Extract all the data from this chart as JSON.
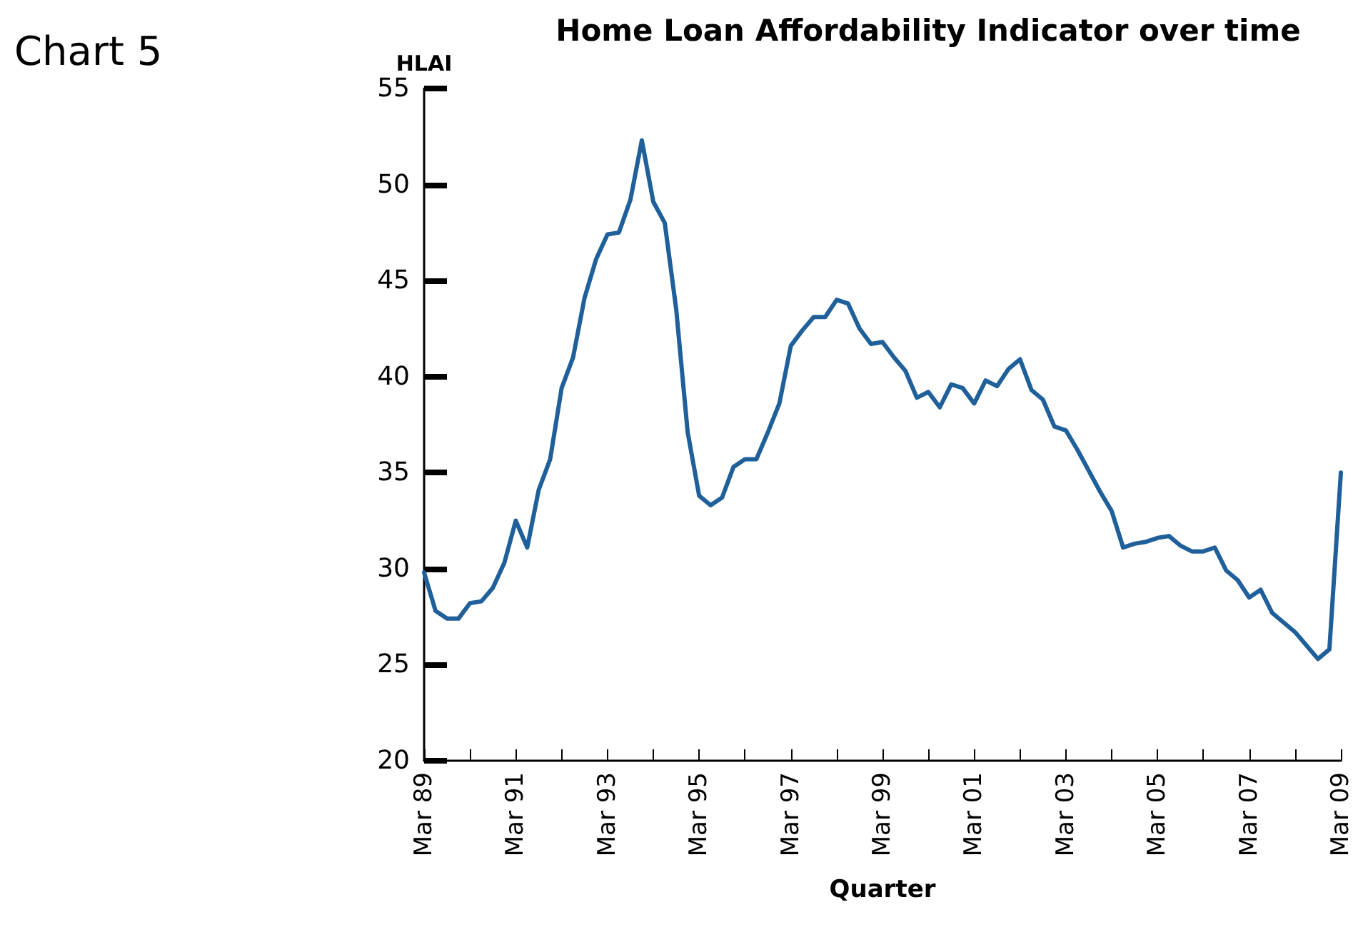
{
  "chart_data": {
    "type": "line",
    "title": "Home Loan Affordability Indicator over time",
    "ylabel": "HLAI",
    "xlabel": "Quarter",
    "annotations": [
      "Chart 5"
    ],
    "categories": [
      "Mar 89",
      null,
      null,
      null,
      null,
      null,
      null,
      null,
      "Mar 91",
      null,
      null,
      null,
      null,
      null,
      null,
      null,
      "Mar 93",
      null,
      null,
      null,
      null,
      null,
      null,
      null,
      "Mar 95",
      null,
      null,
      null,
      null,
      null,
      null,
      null,
      "Mar 97",
      null,
      null,
      null,
      null,
      null,
      null,
      null,
      "Mar 99",
      null,
      null,
      null,
      null,
      null,
      null,
      null,
      "Mar 01",
      null,
      null,
      null,
      null,
      null,
      null,
      null,
      "Mar 03",
      null,
      null,
      null,
      null,
      null,
      null,
      null,
      "Mar 05",
      null,
      null,
      null,
      null,
      null,
      null,
      null,
      "Mar 07",
      null,
      null,
      null,
      null,
      null,
      null,
      null,
      "Mar 09"
    ],
    "series": [
      {
        "color": "#1f5f9a",
        "values": [
          29.8,
          27.8,
          27.4,
          27.4,
          28.2,
          28.3,
          29.0,
          30.3,
          32.5,
          31.1,
          34.1,
          35.7,
          39.4,
          41.0,
          44.1,
          46.1,
          47.4,
          47.5,
          49.2,
          52.3,
          49.1,
          48.0,
          43.5,
          37.1,
          33.8,
          33.3,
          33.7,
          35.3,
          35.7,
          35.7,
          37.1,
          38.6,
          41.6,
          42.4,
          43.1,
          43.1,
          44.0,
          43.8,
          42.5,
          41.7,
          41.8,
          41.0,
          40.3,
          38.9,
          39.2,
          38.4,
          39.6,
          39.4,
          38.6,
          39.8,
          39.5,
          40.4,
          40.9,
          39.3,
          38.8,
          37.4,
          37.2,
          36.2,
          35.1,
          34.0,
          33.0,
          31.1,
          31.3,
          31.4,
          31.6,
          31.7,
          31.2,
          30.9,
          30.9,
          31.1,
          29.9,
          29.4,
          28.5,
          28.9,
          27.7,
          27.2,
          26.7,
          26.0,
          25.3,
          25.8,
          35.0
        ]
      }
    ],
    "ylim": [
      20,
      55
    ],
    "yticks": [
      20,
      25,
      30,
      35,
      40,
      45,
      50,
      55
    ],
    "grid": false,
    "marker": "none",
    "line_style": "solid"
  }
}
